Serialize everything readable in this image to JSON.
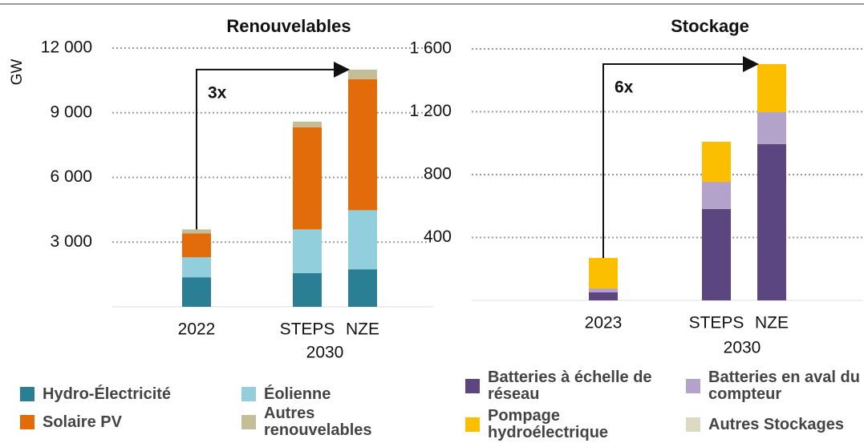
{
  "chart_data": [
    {
      "type": "bar",
      "stacked": true,
      "title": "Renouvelables",
      "ylabel": "GW",
      "categories": [
        "2022",
        "STEPS",
        "NZE"
      ],
      "group_label": "2030",
      "annotation": "3x",
      "ylim": [
        0,
        12000
      ],
      "yticks": [
        {
          "value": 3000,
          "label": "3 000"
        },
        {
          "value": 6000,
          "label": "6 000"
        },
        {
          "value": 9000,
          "label": "9 000"
        },
        {
          "value": 12000,
          "label": "12 000"
        }
      ],
      "grid": true,
      "series": [
        {
          "name": "Hydro-Électricité",
          "color": "#2b7f95",
          "values": [
            1370,
            1560,
            1740
          ]
        },
        {
          "name": "Éolienne",
          "color": "#92cfdc",
          "values": [
            930,
            2030,
            2740
          ]
        },
        {
          "name": "Solaire PV",
          "color": "#e36c0a",
          "values": [
            1100,
            4740,
            6080
          ]
        },
        {
          "name": "Autres renouvelables",
          "color": "#c3bd98",
          "values": [
            190,
            260,
            440
          ]
        }
      ]
    },
    {
      "type": "bar",
      "stacked": true,
      "title": "Stockage",
      "categories": [
        "2023",
        "STEPS",
        "NZE"
      ],
      "group_label": "2030",
      "annotation": "6x",
      "ylim": [
        0,
        1600
      ],
      "yticks": [
        400,
        800,
        {
          "value": 1200,
          "label": "1 200"
        },
        {
          "value": 1600,
          "label": "1 600"
        }
      ],
      "grid": true,
      "series": [
        {
          "name": "Batteries à échelle de réseau",
          "color": "#5b4680",
          "values": [
            51,
            581,
            994
          ]
        },
        {
          "name": "Batteries en aval du compteur",
          "color": "#b3a2c9",
          "values": [
            25,
            173,
            204
          ]
        },
        {
          "name": "Pompage hydroélectrique",
          "color": "#fbbf00",
          "values": [
            194,
            255,
            305
          ]
        },
        {
          "name": "Autres Stockages",
          "color": "#dcdac3",
          "values": [
            0,
            0,
            0
          ]
        }
      ]
    }
  ]
}
